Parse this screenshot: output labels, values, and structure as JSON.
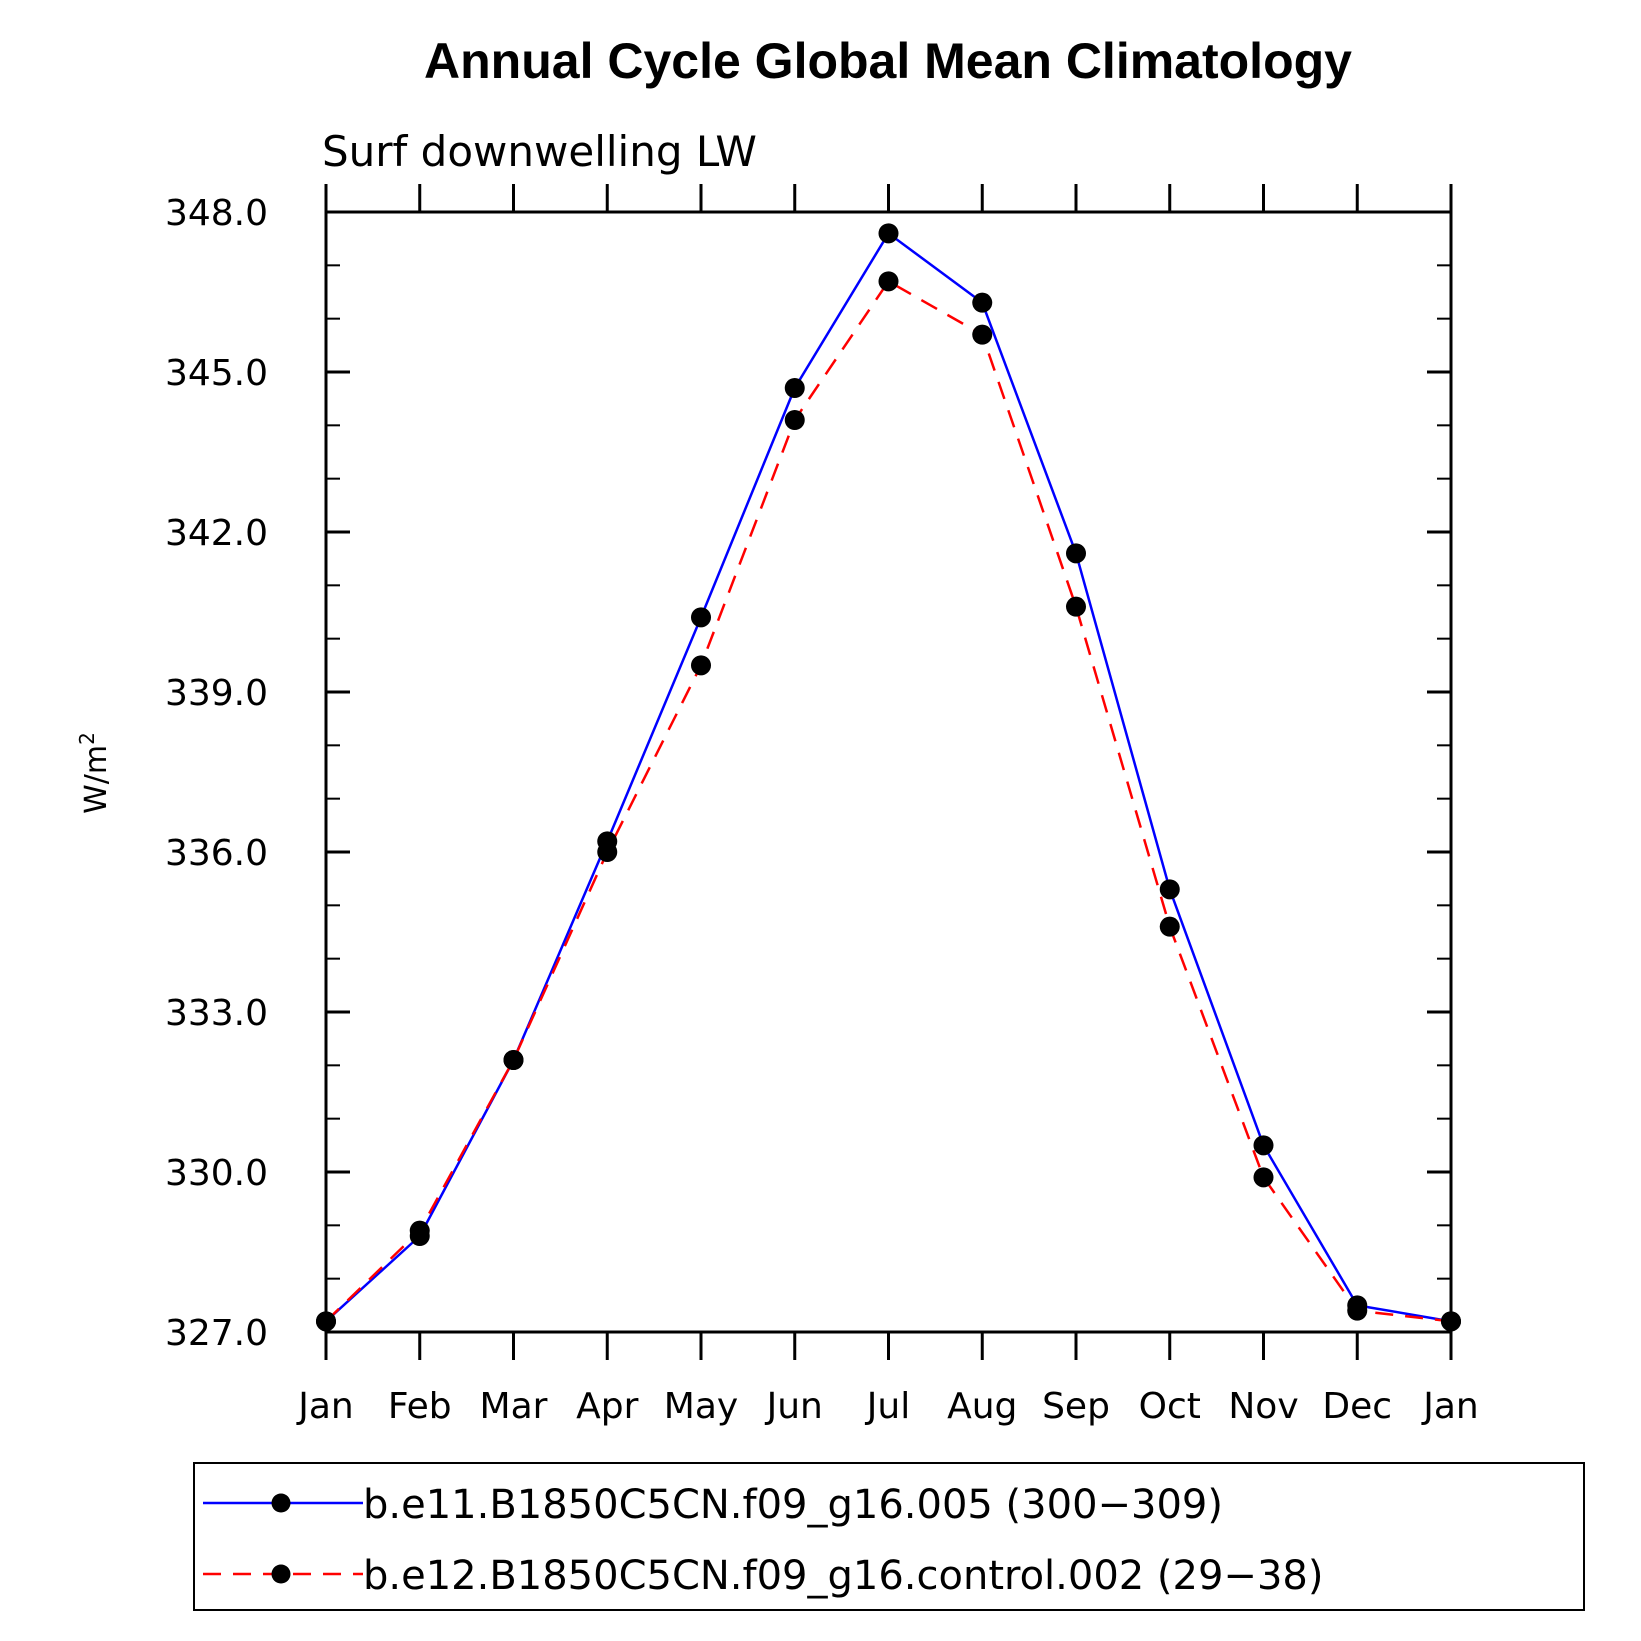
{
  "chart_data": {
    "type": "line",
    "title": "Annual Cycle Global Mean Climatology",
    "subtitle": "Surf downwelling LW",
    "ylabel": "W/m",
    "ylabel_superscript": "2",
    "xlabel": "",
    "categories": [
      "Jan",
      "Feb",
      "Mar",
      "Apr",
      "May",
      "Jun",
      "Jul",
      "Aug",
      "Sep",
      "Oct",
      "Nov",
      "Dec",
      "Jan"
    ],
    "ylim": [
      327.0,
      348.0
    ],
    "yticks": [
      "327.0",
      "330.0",
      "333.0",
      "336.0",
      "339.0",
      "342.0",
      "345.0",
      "348.0"
    ],
    "grid": false,
    "legend_position": "bottom",
    "series": [
      {
        "name": "b.e11.B1850C5CN.f09_g16.005 (300−309)",
        "color": "#0000ff",
        "dash": "solid",
        "marker": "filled-circle",
        "values": [
          327.2,
          328.8,
          332.1,
          336.2,
          340.4,
          344.7,
          347.6,
          346.3,
          341.6,
          335.3,
          330.5,
          327.5,
          327.2
        ]
      },
      {
        "name": "b.e12.B1850C5CN.f09_g16.control.002 (29−38)",
        "color": "#ff0000",
        "dash": "dashed",
        "marker": "filled-circle",
        "values": [
          327.2,
          328.9,
          332.1,
          336.0,
          339.5,
          344.1,
          346.7,
          345.7,
          340.6,
          334.6,
          329.9,
          327.4,
          327.2
        ]
      }
    ]
  }
}
